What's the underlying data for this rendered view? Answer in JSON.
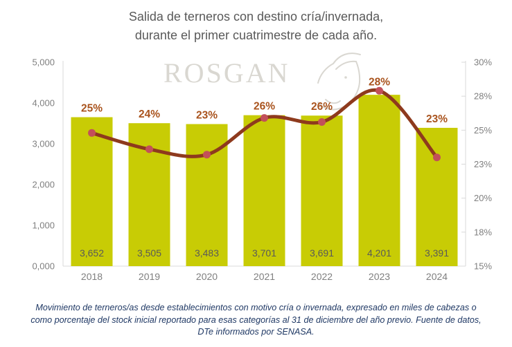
{
  "title": {
    "line1": "Salida de terneros con destino cría/invernada,",
    "line2": "durante el primer cuatrimestre de cada año."
  },
  "watermark": {
    "text": "ROSGAN"
  },
  "footer": {
    "text": "Movimiento de terneros/as desde establecimientos con motivo cría o invernada, expresado en miles de cabezas o como porcentaje del stock inicial reportado para esas categorías al 31 de diciembre del año previo. Fuente de datos, DTe informados por SENASA."
  },
  "chart_data": {
    "type": "bar",
    "subtype": "combo bar+line, dual axis, no gridlines, no legend",
    "categories": [
      "2018",
      "2019",
      "2020",
      "2021",
      "2022",
      "2023",
      "2024"
    ],
    "series": [
      {
        "name": "bars-left-axis-miles-de-cabezas",
        "type": "bar",
        "values": [
          3652,
          3505,
          3483,
          3701,
          3691,
          4201,
          3391
        ],
        "labels": [
          "3,652",
          "3,505",
          "3,483",
          "3,701",
          "3,691",
          "4,201",
          "3,391"
        ],
        "color": "#c8cc05"
      },
      {
        "name": "line-right-axis-porcentaje",
        "type": "line",
        "labels": [
          "25%",
          "24%",
          "23%",
          "26%",
          "26%",
          "28%",
          "23%"
        ],
        "values_pct_plotted": [
          24.8,
          23.6,
          23.2,
          25.9,
          25.6,
          27.9,
          23.0
        ],
        "line_color": "#8e3a1d",
        "marker_color": "#c2505a",
        "label_color": "#a9531d"
      }
    ],
    "left_axis": {
      "min": 0,
      "max": 5000,
      "ticks": [
        "0,000",
        "1,000",
        "2,000",
        "3,000",
        "4,000",
        "5,000"
      ],
      "tick_values": [
        0,
        1000,
        2000,
        3000,
        4000,
        5000
      ]
    },
    "right_axis": {
      "min": 15,
      "max": 30,
      "ticks": [
        "15%",
        "18%",
        "20%",
        "23%",
        "25%",
        "28%",
        "30%"
      ],
      "tick_values": [
        15,
        17.5,
        20,
        22.5,
        25,
        27.5,
        30
      ]
    },
    "grid": false,
    "legend": "none",
    "axis_text_color": "#7f7f7f",
    "bar_value_text_color": "#595959",
    "axis_line_color": "#d9d9d9"
  }
}
